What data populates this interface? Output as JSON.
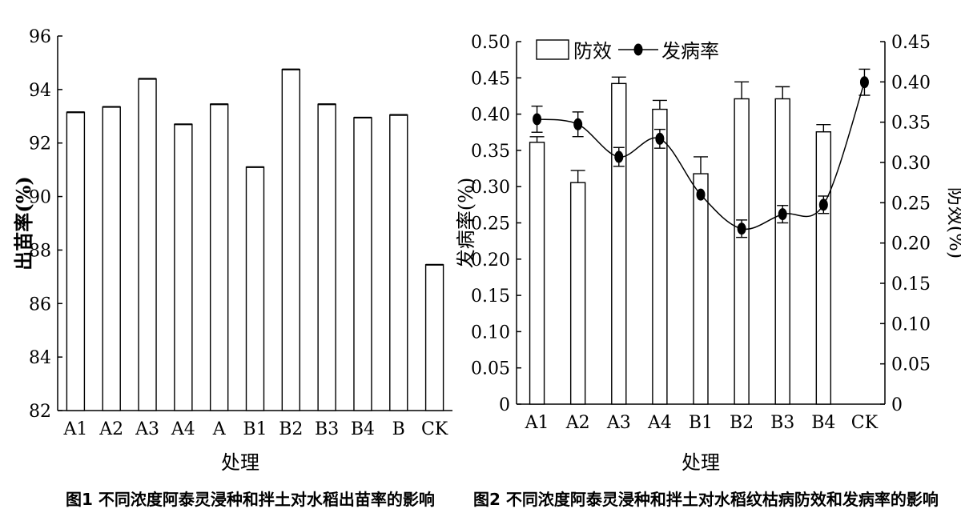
{
  "figures": {
    "fig1_caption": "图1  不同浓度阿泰灵浸种和拌土对水稻出苗率的影响",
    "fig2_caption": "图2  不同浓度阿泰灵浸种和拌土对水稻纹枯病防效和发病率的影响"
  },
  "chart_data": [
    {
      "type": "bar",
      "categories": [
        "A1",
        "A2",
        "A3",
        "A4",
        "A",
        "B1",
        "B2",
        "B3",
        "B4",
        "B",
        "CK"
      ],
      "values": [
        93.15,
        93.35,
        94.4,
        92.7,
        93.45,
        91.1,
        94.75,
        93.45,
        92.95,
        93.05,
        87.45
      ],
      "xlabel": "处理",
      "ylabel": "出苗率(%)",
      "ylim": [
        82,
        96
      ],
      "yticks": [
        82,
        84,
        86,
        88,
        90,
        92,
        94,
        96
      ],
      "grid": false,
      "bar_fill": "#ffffff",
      "bar_stroke": "#000000"
    },
    {
      "type": "bar",
      "categories": [
        "A1",
        "A2",
        "A3",
        "A4",
        "B1",
        "B2",
        "B3",
        "B4",
        "CK"
      ],
      "series": [
        {
          "name": "防效",
          "type": "bar",
          "axis": "right",
          "values": [
            0.325,
            0.275,
            0.398,
            0.366,
            0.286,
            0.379,
            0.379,
            0.338,
            null
          ],
          "errors": [
            0.007,
            0.015,
            0.008,
            0.011,
            0.021,
            0.021,
            0.015,
            0.009,
            null
          ]
        },
        {
          "name": "发病率",
          "type": "line",
          "axis": "left",
          "values": [
            0.393,
            0.386,
            0.341,
            0.366,
            0.289,
            0.242,
            0.262,
            0.275,
            0.444
          ],
          "errors": [
            0.018,
            0.017,
            0.013,
            0.013,
            0.0,
            0.012,
            0.012,
            0.012,
            0.018
          ]
        }
      ],
      "xlabel": "处理",
      "ylabel_left": "发病率(%)",
      "ylabel_right": "防效(%)",
      "ylim_left": [
        0,
        0.5
      ],
      "ylim_right": [
        0,
        0.45
      ],
      "yticks_left": [
        "0",
        "0.05",
        "0.10",
        "0.15",
        "0.20",
        "0.25",
        "0.30",
        "0.35",
        "0.40",
        "0.45",
        "0.50"
      ],
      "yticks_right": [
        "0",
        "0.05",
        "0.10",
        "0.15",
        "0.20",
        "0.25",
        "0.30",
        "0.35",
        "0.40",
        "0.45"
      ],
      "legend_position": "top-left",
      "grid": false
    }
  ]
}
